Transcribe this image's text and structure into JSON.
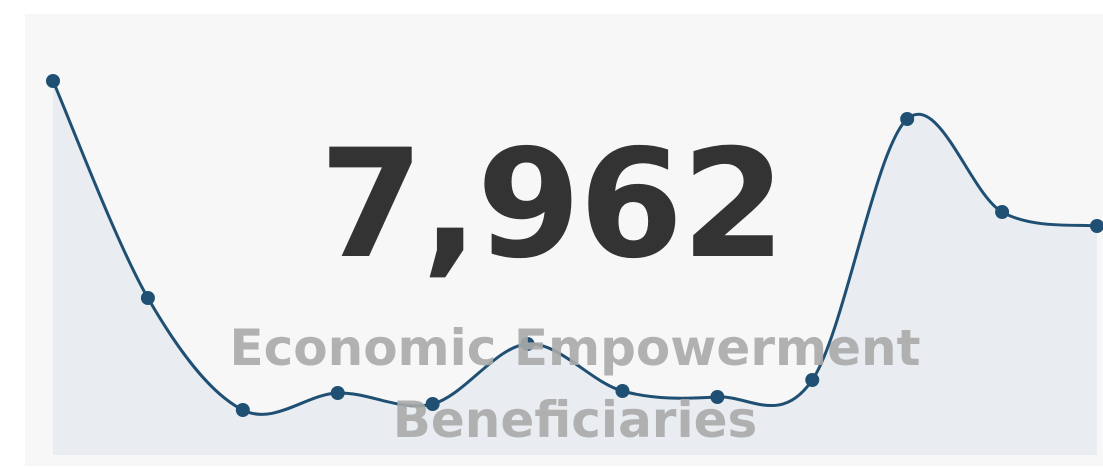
{
  "chart_data": {
    "type": "line",
    "title": "Economic Empowerment Beneficiaries",
    "value": 7962,
    "value_label": "7,962",
    "values": [
      374,
      157,
      45,
      62,
      51,
      111,
      64,
      58,
      75,
      336,
      243,
      229
    ],
    "color": "#1f5073",
    "area_color": "#e9edf1"
  }
}
